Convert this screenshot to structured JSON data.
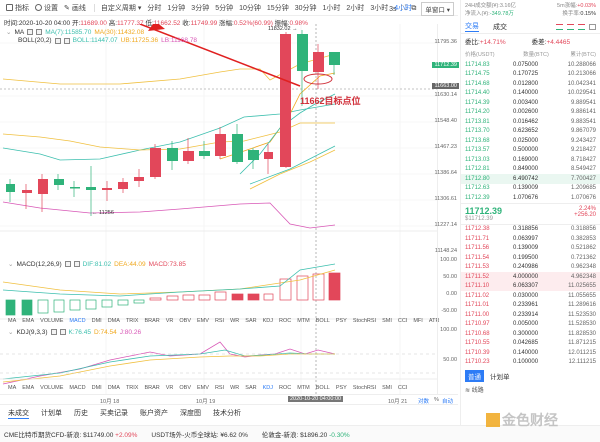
{
  "toolbar": {
    "indicators_label": "指标",
    "settings_label": "设置",
    "draw_label": "画线",
    "custom_period_label": "自定义周期",
    "periods": [
      "分时",
      "1分钟",
      "3分钟",
      "5分钟",
      "10分钟",
      "15分钟",
      "30分钟",
      "1小时",
      "2小时",
      "3小时",
      "4小时"
    ],
    "active_period": "4小时",
    "chart_style_label": "3s",
    "window_select": "单窗口"
  },
  "infobar": {
    "time_label": "时间:",
    "time": "2020-10-20 04:00",
    "open_label": "开:",
    "open": "11689.00",
    "high_label": "高:",
    "high": "11777.37",
    "low_label": "低:",
    "low": "11662.52",
    "close_label": "收:",
    "close": "11749.99",
    "change_label": "涨幅:",
    "change": "0.52%(60.99)",
    "amplitude_label": "振幅:",
    "amplitude": "0.98%"
  },
  "main_indicators": {
    "ma": {
      "label": "MA",
      "ma7": "MA(7):11585.70",
      "ma30": "MA(30):11432.08"
    },
    "boll": {
      "label": "BOLL(20,2)",
      "boll": "BOLL:11447.07",
      "ub": "UB:11725.36",
      "lb": "LB:11168.78"
    }
  },
  "chart": {
    "high_marker": "11832.02",
    "low_marker": "11256",
    "annotation": "11662目标点位",
    "price_axis": [
      "11795.36",
      "11630.14",
      "11548.40",
      "11467.23",
      "11386.64",
      "11306.61",
      "11227.14",
      "11148.24"
    ],
    "current_price_tag": "11712.39",
    "crosshair_price_tag": "11663.00",
    "colors": {
      "up": "#e2475a",
      "down": "#2fb37a",
      "annotation": "#d0303a"
    }
  },
  "macd": {
    "label": "MACD(12,26,9)",
    "dif": "DIF:81.02",
    "dea": "DEA:44.09",
    "macd": "MACD:73.85",
    "axis": [
      "100.00",
      "50.00",
      "0.00",
      "-50.00"
    ]
  },
  "kdj": {
    "label": "KDJ(9,3,3)",
    "k": "K:76.45",
    "d": "D:74.54",
    "j": "J:80.26",
    "axis": [
      "100.00",
      "50.00"
    ]
  },
  "indicator_tabs": {
    "row1": [
      "MA",
      "EMA",
      "VOLUME",
      "MACD",
      "DMI",
      "DMA",
      "TRIX",
      "BRAR",
      "VR",
      "OBV",
      "EMV",
      "RSI",
      "WR",
      "SAR",
      "KDJ",
      "ROC",
      "MTM",
      "BOLL",
      "PSY",
      "StochRSI",
      "SMI",
      "CCI",
      "MFI",
      "ATR"
    ],
    "row1_active": "MACD",
    "row2": [
      "MA",
      "EMA",
      "VOLUME",
      "MACD",
      "DMI",
      "DMA",
      "TRIX",
      "BRAR",
      "VR",
      "OBV",
      "EMV",
      "RSI",
      "WR",
      "SAR",
      "KDJ",
      "ROC",
      "MTM",
      "BOLL",
      "PSY",
      "StochRSI",
      "SMI",
      "CCI"
    ],
    "row2_active": "KDJ"
  },
  "time_axis": {
    "labels": [
      "10月 18",
      "10月 19",
      "10月 21"
    ],
    "crosshair_time": "2020-10-20 04:00:00",
    "log_label": "对数",
    "percent_label": "%",
    "auto_label": "自动"
  },
  "bottom_tabs": [
    "未成交",
    "计划单",
    "历史",
    "买卖记录",
    "账户资产",
    "深度图",
    "技术分析"
  ],
  "ticker": [
    {
      "name": "CME比特币期货CFD-新浪:",
      "price": "$11749.00",
      "change": "+2.09%",
      "dir": "up"
    },
    {
      "name": "USDT场外-火币全球站:",
      "price": "¥6.62",
      "change": "0%",
      "dir": "flat"
    },
    {
      "name": "伦敦金-新浪:",
      "price": "$1896.20",
      "change": "-0.30%",
      "dir": "down"
    }
  ],
  "right_panel": {
    "stats": {
      "volume_24h_label": "24H成交额(¥):",
      "volume_24h": "3.16亿",
      "change_5m_label": "5m涨幅:",
      "change_5m": "+0.03%",
      "net_inflow_label": "净流入(¥):",
      "net_inflow": "-349.78万",
      "turnover_label": "换手率:",
      "turnover": "0.15%"
    },
    "tabs": [
      "交易",
      "成交"
    ],
    "active_tab": "交易",
    "ratio_label": "委比:",
    "ratio": "+14.71%",
    "diff_label": "委差:",
    "diff": "+4.4465",
    "headers": [
      "价格(USDT)",
      "数量(BTC)",
      "累计(BTC)"
    ],
    "asks": [
      [
        "11714.83",
        "0.075000",
        "10.288066"
      ],
      [
        "11714.75",
        "0.170725",
        "10.213066"
      ],
      [
        "11714.68",
        "0.012800",
        "10.042341"
      ],
      [
        "11714.40",
        "0.140000",
        "10.029541"
      ],
      [
        "11714.39",
        "0.003400",
        "9.889541"
      ],
      [
        "11714.20",
        "0.002600",
        "9.886141"
      ],
      [
        "11713.81",
        "0.016462",
        "9.883541"
      ],
      [
        "11713.70",
        "0.623652",
        "9.867079"
      ],
      [
        "11713.68",
        "0.025000",
        "9.243427"
      ],
      [
        "11713.57",
        "0.500000",
        "9.218427"
      ],
      [
        "11713.03",
        "0.169000",
        "8.718427"
      ],
      [
        "11712.81",
        "0.849000",
        "8.549427"
      ],
      [
        "11712.80",
        "6.490742",
        "7.700427"
      ],
      [
        "11712.63",
        "0.139009",
        "1.209685"
      ],
      [
        "11712.39",
        "1.070676",
        "1.070676"
      ]
    ],
    "last_price": "11712.39",
    "last_price_usd": "$11712.39",
    "last_change_pct": "2.24%",
    "last_change_abs": "+256.20",
    "bids": [
      [
        "11712.38",
        "0.318856",
        "0.318856"
      ],
      [
        "11711.71",
        "0.063997",
        "0.382853"
      ],
      [
        "11711.56",
        "0.139009",
        "0.521862"
      ],
      [
        "11711.54",
        "0.199500",
        "0.721362"
      ],
      [
        "11711.53",
        "0.240986",
        "0.962348"
      ],
      [
        "11711.52",
        "4.000000",
        "4.962348"
      ],
      [
        "11711.10",
        "6.063307",
        "11.025655"
      ],
      [
        "11711.02",
        "0.030000",
        "11.055655"
      ],
      [
        "11711.01",
        "0.233961",
        "11.289616"
      ],
      [
        "11711.00",
        "0.233914",
        "11.523530"
      ],
      [
        "11710.97",
        "0.005000",
        "11.528530"
      ],
      [
        "11710.68",
        "0.300000",
        "11.828530"
      ],
      [
        "11710.55",
        "0.042685",
        "11.871215"
      ],
      [
        "11710.39",
        "0.140000",
        "12.011215"
      ],
      [
        "11710.23",
        "0.100000",
        "12.111215"
      ]
    ],
    "order_type_button": "普通",
    "plan_label": "计划单",
    "network_label": "线路",
    "watermark": "金色财经"
  }
}
